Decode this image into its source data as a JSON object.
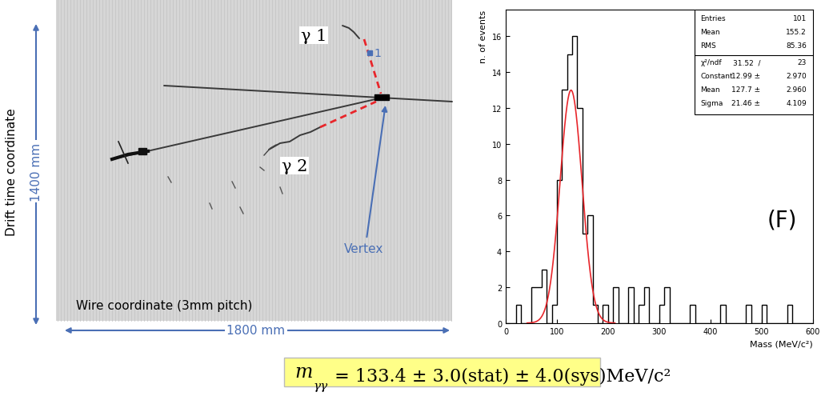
{
  "chart_data": {
    "type": "histogram",
    "x_label": "Mass (MeV/c²)",
    "y_label": "n. of events",
    "bins": [
      0,
      10,
      20,
      30,
      40,
      50,
      60,
      70,
      80,
      90,
      100,
      110,
      120,
      130,
      140,
      150,
      160,
      170,
      180,
      190,
      200,
      210,
      220,
      230,
      240,
      250,
      260,
      270,
      280,
      290,
      300,
      310,
      320,
      330,
      340,
      350,
      360,
      370,
      380,
      390,
      400,
      410,
      420,
      430,
      440,
      450,
      460,
      470,
      480,
      490,
      500,
      510,
      520,
      530,
      540,
      550,
      560,
      570,
      580,
      590,
      600
    ],
    "counts": [
      0,
      0,
      1,
      0,
      0,
      2,
      2,
      3,
      0,
      1,
      8,
      13,
      15,
      16,
      12,
      5,
      6,
      1,
      0,
      1,
      0,
      2,
      0,
      0,
      2,
      0,
      1,
      2,
      0,
      0,
      1,
      2,
      0,
      0,
      0,
      0,
      1,
      0,
      0,
      0,
      0,
      0,
      1,
      0,
      0,
      0,
      0,
      1,
      0,
      0,
      1,
      0,
      0,
      0,
      0,
      1,
      0,
      0,
      0,
      0
    ],
    "color": "#000000",
    "xlim": [
      0,
      600
    ],
    "xticks": [
      0,
      100,
      200,
      300,
      400,
      500,
      600
    ],
    "ylim": [
      0,
      17.5
    ],
    "yticks": [
      0,
      2,
      4,
      6,
      8,
      10,
      12,
      14,
      16
    ],
    "fit": {
      "type": "gaussian",
      "color": "#e8262b",
      "constant": 12.99,
      "mean": 127.7,
      "sigma": 21.46
    },
    "stats_box": [
      {
        "label": "Entries",
        "value": "101"
      },
      {
        "label": "Mean",
        "value": "155.2"
      },
      {
        "label": "RMS",
        "value": "85.36"
      },
      {
        "label": "χ²/ndf",
        "value": "31.52  /",
        "error": "23"
      },
      {
        "label": "Constant",
        "value": "12.99 ±",
        "error": "2.970"
      },
      {
        "label": "Mean",
        "value": "127.7 ±",
        "error": "2.960"
      },
      {
        "label": "Sigma",
        "value": "21.46 ±",
        "error": "4.109"
      }
    ],
    "annotation": "(F)"
  },
  "event_display": {
    "y_axis_label": "Drift time coordinate",
    "y_extent": "1400 mm",
    "x_axis_label": "Wire coordinate (3mm pitch)",
    "x_extent": "1800 mm",
    "photon_1": "γ 1",
    "photon_2": "γ 2",
    "marker_label": "1",
    "vertex_label": "Vertex"
  },
  "result": {
    "symbol": "m",
    "subscript": "γγ",
    "text": " = 133.4 ± 3.0(stat) ± 4.0(sys)MeV/c²"
  }
}
